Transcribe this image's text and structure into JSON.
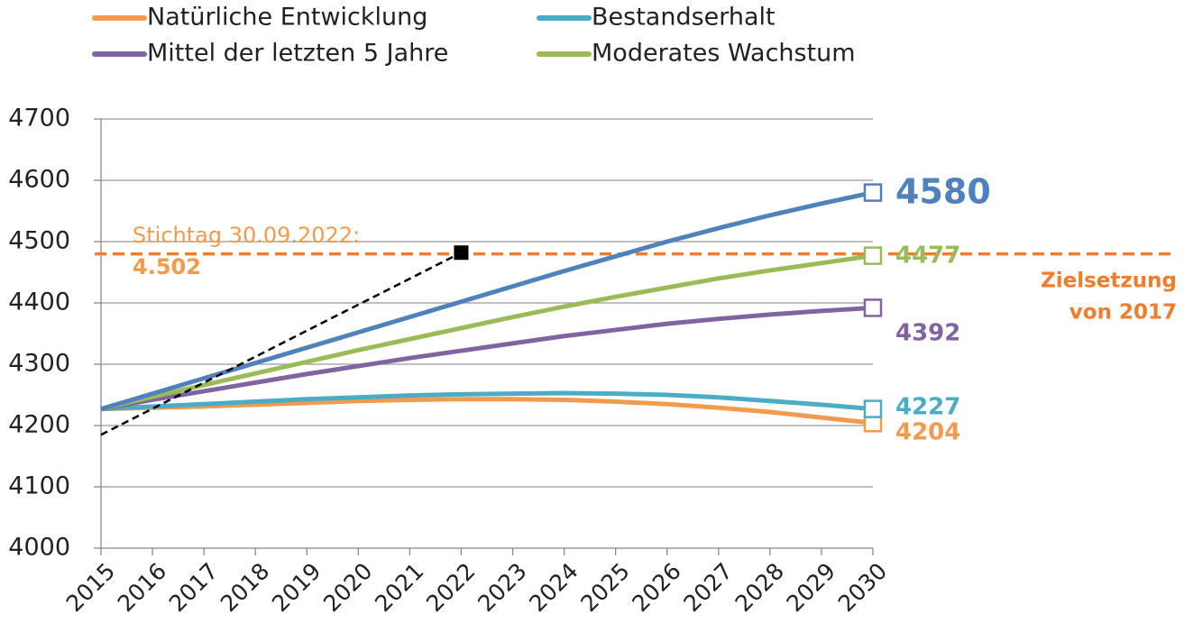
{
  "chart_data": {
    "type": "line",
    "x": [
      2015,
      2016,
      2017,
      2018,
      2019,
      2020,
      2021,
      2022,
      2023,
      2024,
      2025,
      2026,
      2027,
      2028,
      2029,
      2030
    ],
    "series": [
      {
        "name": "Natürliche Entwicklung",
        "color": "#f39a4c",
        "values": [
          4227,
          4229,
          4231,
          4234,
          4237,
          4240,
          4242,
          4243,
          4243,
          4242,
          4239,
          4235,
          4229,
          4222,
          4213,
          4204
        ]
      },
      {
        "name": "Bestandserhalt",
        "color": "#4bacc6",
        "values": [
          4227,
          4231,
          4235,
          4239,
          4243,
          4246,
          4249,
          4251,
          4252,
          4253,
          4252,
          4250,
          4246,
          4240,
          4234,
          4227
        ]
      },
      {
        "name": "Mittel der letzten 5 Jahre",
        "color": "#8064a2",
        "values": [
          4227,
          4242,
          4256,
          4270,
          4284,
          4297,
          4310,
          4322,
          4334,
          4346,
          4356,
          4366,
          4374,
          4381,
          4387,
          4392
        ]
      },
      {
        "name": "Moderates Wachstum",
        "color": "#9bbb59",
        "values": [
          4227,
          4247,
          4266,
          4285,
          4304,
          4323,
          4341,
          4359,
          4377,
          4394,
          4410,
          4425,
          4440,
          4453,
          4465,
          4477
        ]
      },
      {
        "color": "#4f81bd",
        "values": [
          4227,
          4252,
          4277,
          4302,
          4327,
          4352,
          4377,
          4402,
          4427,
          4452,
          4476,
          4500,
          4522,
          4543,
          4562,
          4580
        ]
      }
    ],
    "trend": {
      "color": "#000000",
      "x": [
        2015,
        2022
      ],
      "values": [
        4185,
        4482
      ]
    },
    "annotation": {
      "lines": [
        "Stichtag 30.09.2022:",
        "4.502"
      ],
      "color": "#f39a4c"
    },
    "target": {
      "value": 4480,
      "color": "#f07c2c",
      "label": [
        "Zielsetzung",
        "von 2017"
      ]
    },
    "xlim": [
      2015,
      2030
    ],
    "ylim": [
      4000,
      4700
    ],
    "yticks": [
      4000,
      4100,
      4200,
      4300,
      4400,
      4500,
      4600,
      4700
    ],
    "grid": true
  }
}
